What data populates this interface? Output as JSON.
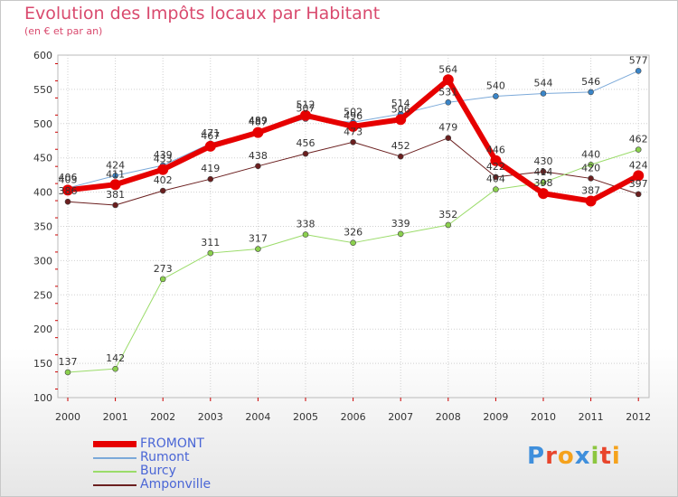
{
  "title": "Evolution des Impôts locaux par Habitant",
  "subtitle": "(en € et par an)",
  "logo": {
    "text": "Proxiti",
    "letters": [
      "P",
      "r",
      "o",
      "x",
      "i",
      "t",
      "i"
    ],
    "colors": [
      "#3f8fdc",
      "#e8452c",
      "#f5a21c",
      "#3f8fdc",
      "#8cc63f",
      "#e8452c",
      "#f5a21c"
    ]
  },
  "chart_data": {
    "type": "line",
    "title": "Evolution des Impôts locaux par Habitant",
    "ylabel": "(en € et par an)",
    "xlabel": "",
    "ylim": [
      100,
      600
    ],
    "yticks": [
      100,
      150,
      200,
      250,
      300,
      350,
      400,
      450,
      500,
      550,
      600
    ],
    "grid": true,
    "legend": "bottom-left",
    "categories": [
      "2000",
      "2001",
      "2002",
      "2003",
      "2004",
      "2005",
      "2006",
      "2007",
      "2008",
      "2009",
      "2010",
      "2011",
      "2012"
    ],
    "series": [
      {
        "name": "Amponville",
        "color": "#6b1f1f",
        "markerColor": "#6b1f1f",
        "width": 1,
        "values": [
          386,
          381,
          402,
          419,
          438,
          456,
          473,
          452,
          479,
          422,
          430,
          420,
          397
        ]
      },
      {
        "name": "Burcy",
        "color": "#9bdc6a",
        "markerColor": "#8bd04e",
        "width": 1,
        "values": [
          137,
          142,
          273,
          311,
          317,
          338,
          326,
          339,
          352,
          404,
          414,
          440,
          462
        ]
      },
      {
        "name": "Rumont",
        "color": "#7ba9d9",
        "markerColor": "#3a85c8",
        "width": 1,
        "values": [
          406,
          424,
          439,
          471,
          489,
          507,
          502,
          514,
          531,
          540,
          544,
          546,
          577
        ]
      },
      {
        "name": "FROMONT",
        "color": "#e60000",
        "markerColor": "#e60000",
        "width": 6,
        "values": [
          403,
          411,
          433,
          467,
          487,
          512,
          496,
          506,
          564,
          446,
          398,
          387,
          424
        ]
      }
    ],
    "legend_order": [
      "FROMONT",
      "Rumont",
      "Burcy",
      "Amponville"
    ]
  }
}
